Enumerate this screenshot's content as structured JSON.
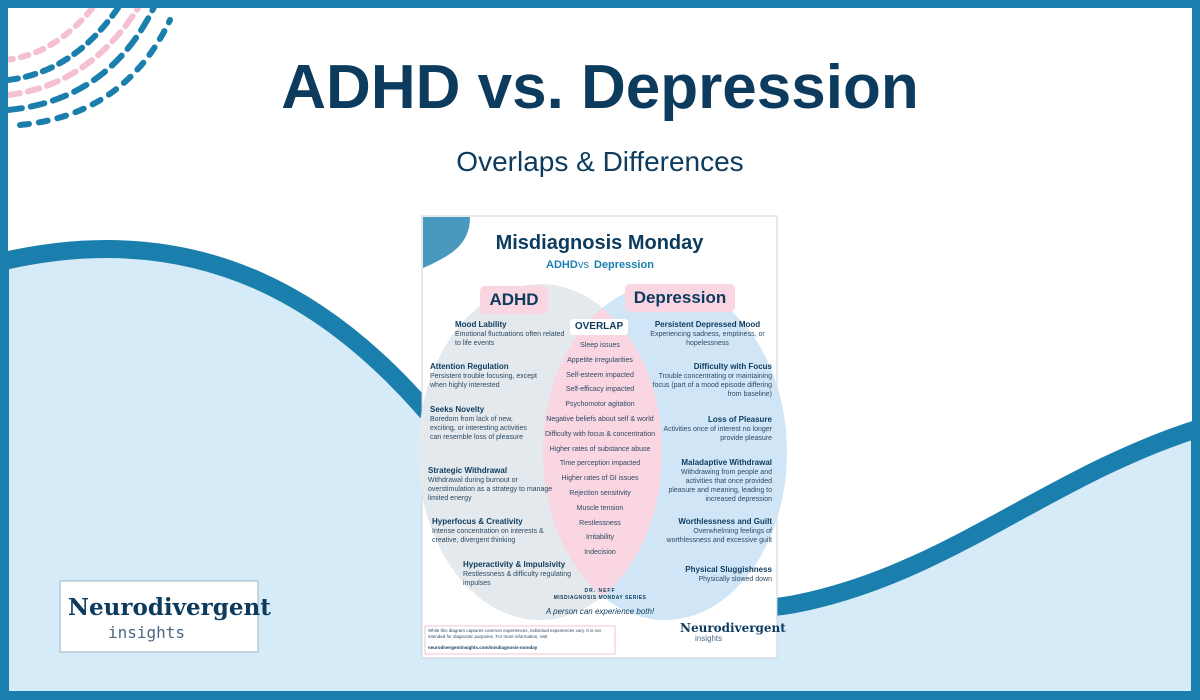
{
  "header": {
    "title": "ADHD vs. Depression",
    "subtitle": "Overlaps & Differences"
  },
  "card": {
    "title": "Misdiagnosis Monday",
    "subtitle": {
      "left": "ADHD",
      "middle": "vs",
      "right": "Depression"
    },
    "adhd": {
      "label": "ADHD",
      "items": [
        {
          "title": "Mood Lability",
          "text": "Emotional fluctuations often related to life events"
        },
        {
          "title": "Attention Regulation",
          "text": "Persistent trouble focusing, except when highly interested"
        },
        {
          "title": "Seeks Novelty",
          "text": "Boredom from lack of new, exciting, or interesting activities can resemble loss of pleasure"
        },
        {
          "title": "Strategic Withdrawal",
          "text": "Withdrawal during burnout or overstimulation as a strategy to manage limited energy"
        },
        {
          "title": "Hyperfocus & Creativity",
          "text": "Intense concentration on interests & creative, divergent thinking"
        },
        {
          "title": "Hyperactivity & Impulsivity",
          "text": "Restlessness & difficulty regulating impulses"
        }
      ]
    },
    "overlap": {
      "label": "OVERLAP",
      "items": [
        "Sleep issues",
        "Appetite irregularities",
        "Self-esteem impacted",
        "Self-efficacy impacted",
        "Psychomotor agitation",
        "Negative beliefs about self & world",
        "Difficulty with focus & concentration",
        "Higher rates of substance abuse",
        "Time perception impacted",
        "Higher rates of GI issues",
        "Rejection sensitivity",
        "Muscle tension",
        "Restlessness",
        "Irritability",
        "Indecision"
      ]
    },
    "depression": {
      "label": "Depression",
      "items": [
        {
          "title": "Persistent Depressed Mood",
          "text": "Experiencing sadness, emptiness, or hopelessness"
        },
        {
          "title": "Difficulty with Focus",
          "text": "Trouble concentrating or maintaining focus (part of a mood episode differing from baseline)"
        },
        {
          "title": "Loss of Pleasure",
          "text": "Activities once of interest no longer provide pleasure"
        },
        {
          "title": "Maladaptive Withdrawal",
          "text": "Withdrawing from people and activities that once provided pleasure and meaning, leading to increased depression"
        },
        {
          "title": "Worthlessness and Guilt",
          "text": "Overwhelming feelings of worthlessness and excessive guilt"
        },
        {
          "title": "Physical Sluggishness",
          "text": "Physically slowed down"
        }
      ]
    },
    "series": {
      "author": "DR. NEFF",
      "name": "MISDIAGNOSIS MONDAY SERIES"
    },
    "note": "A person can experience both!",
    "disclaimer": "While this diagram captures common experiences, individual experiences vary. It is not intended for diagnostic purposes. For more information, visit",
    "link": "neurodivergentinsights.com/misdiagnosis-monday",
    "logo": {
      "name": "Neurodivergent",
      "tagline": "insights"
    }
  },
  "logo": {
    "name": "Neurodivergent",
    "tagline": "insights"
  }
}
